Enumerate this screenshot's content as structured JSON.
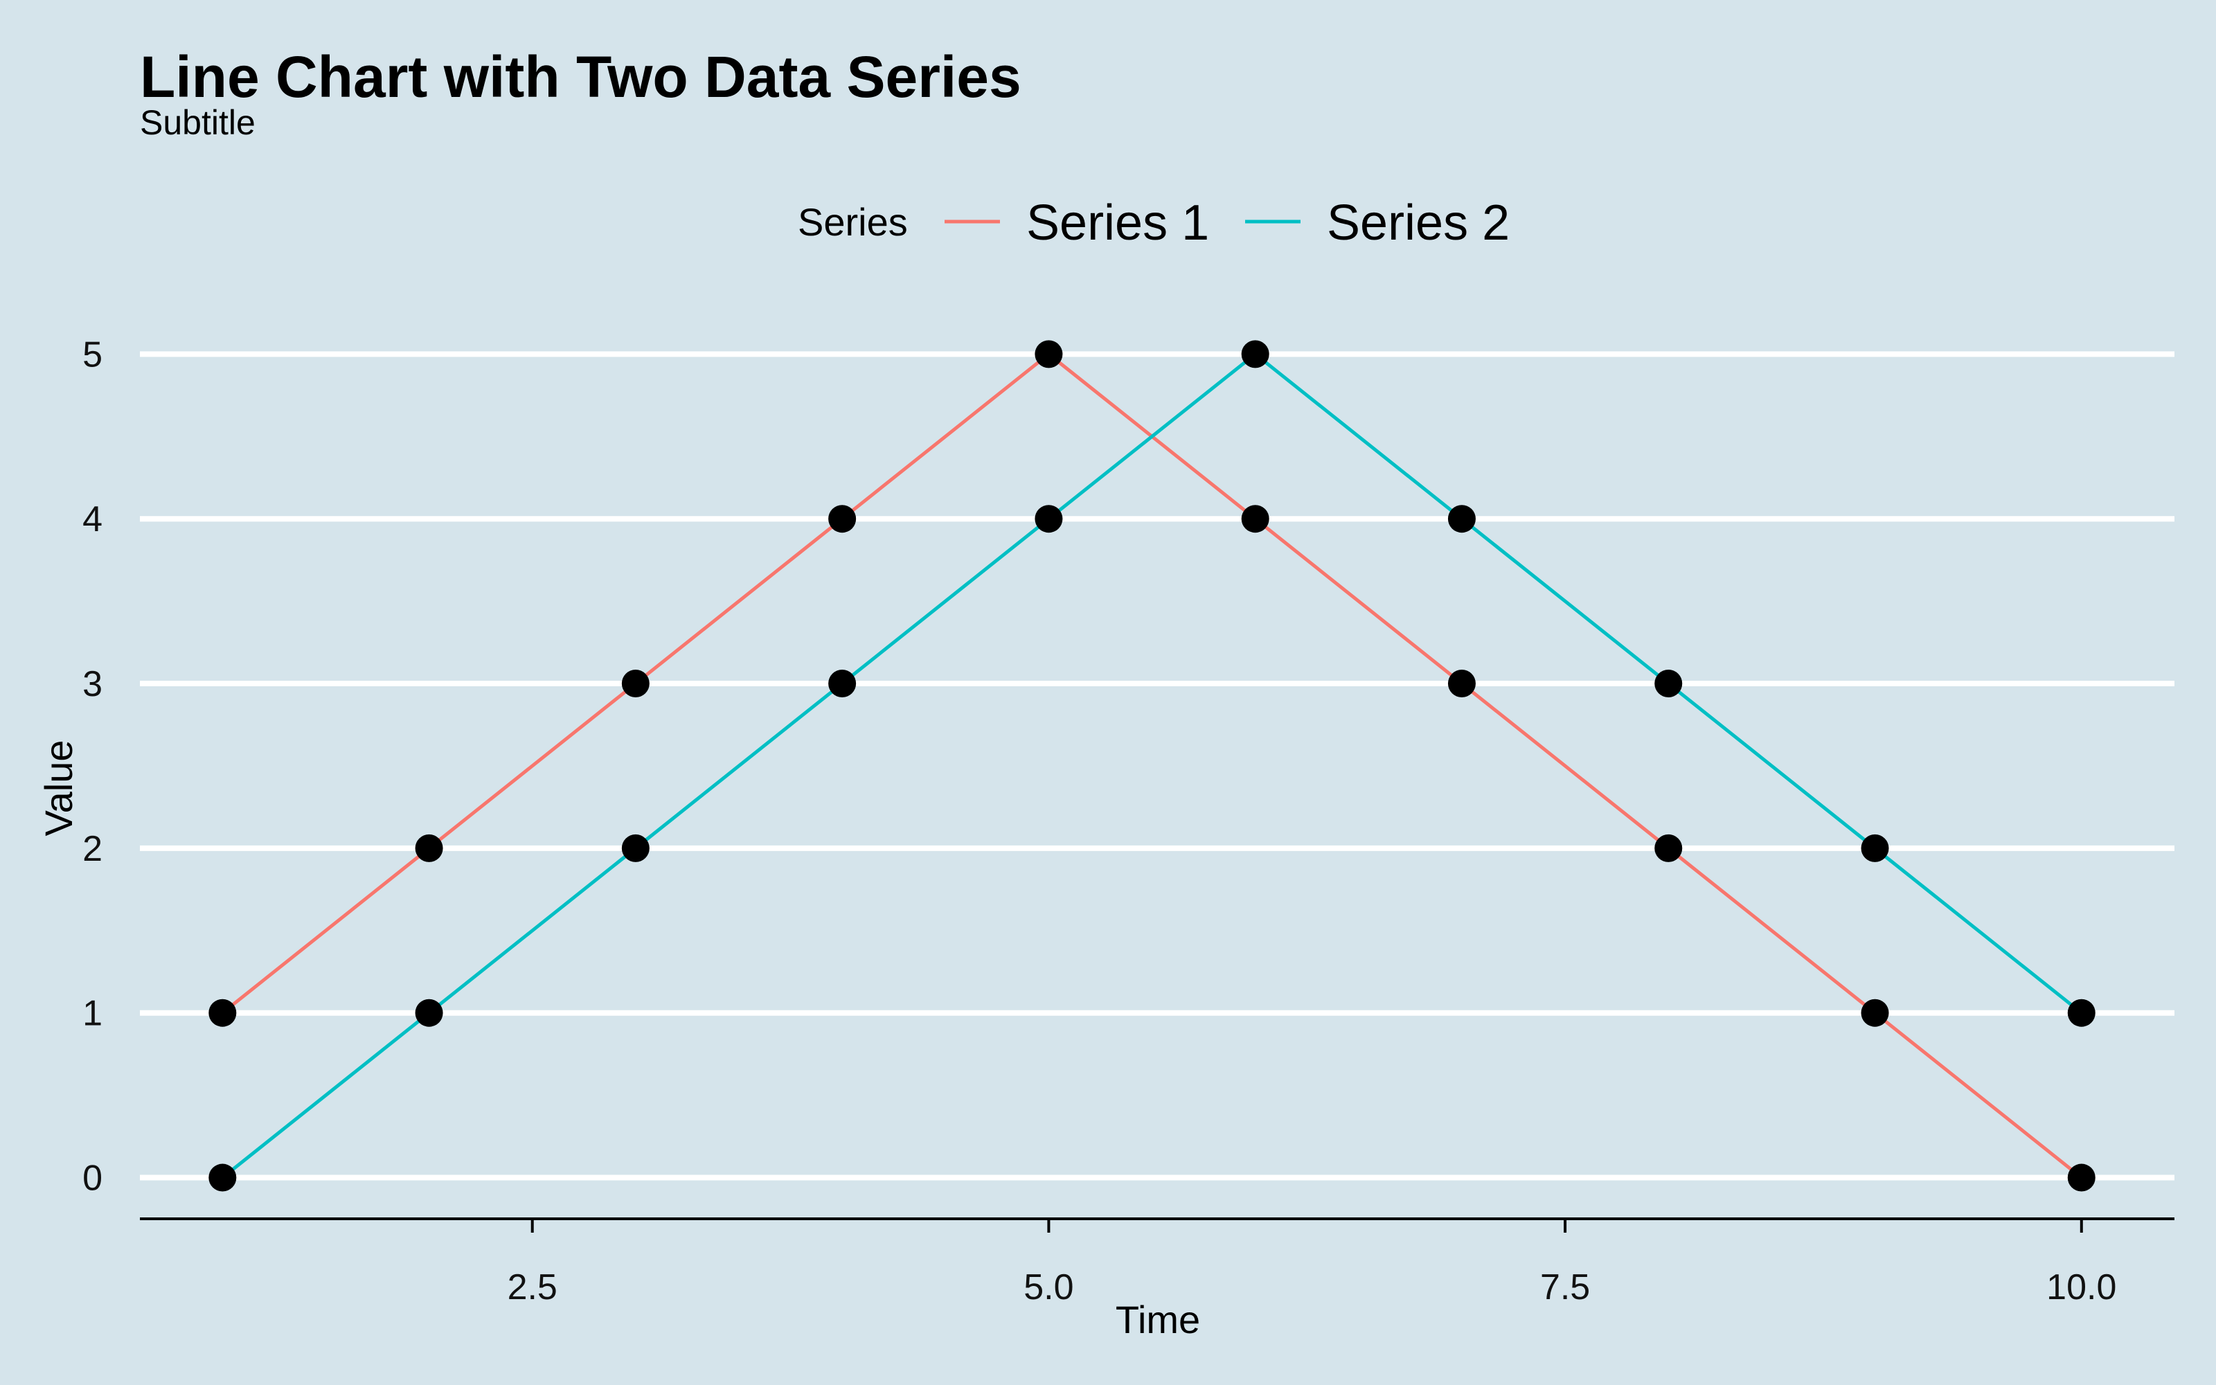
{
  "chart_data": {
    "type": "line",
    "title": "Line Chart with Two Data Series",
    "subtitle": "Subtitle",
    "xlabel": "Time",
    "ylabel": "Value",
    "legend_title": "Series",
    "legend_position": "top",
    "x": [
      1,
      2,
      3,
      4,
      5,
      6,
      7,
      8,
      9,
      10
    ],
    "xlim": [
      0.6,
      10.45
    ],
    "ylim": [
      -0.25,
      5.3
    ],
    "x_ticks": [
      2.5,
      5.0,
      7.5,
      10.0
    ],
    "x_tick_labels": [
      "2.5",
      "5.0",
      "7.5",
      "10.0"
    ],
    "y_ticks": [
      0,
      1,
      2,
      3,
      4,
      5
    ],
    "y_tick_labels": [
      "0",
      "1",
      "2",
      "3",
      "4",
      "5"
    ],
    "grid": "horizontal-major",
    "series": [
      {
        "name": "Series 1",
        "color": "#f8766d",
        "values": [
          1,
          2,
          3,
          4,
          5,
          4,
          3,
          2,
          1,
          0
        ]
      },
      {
        "name": "Series 2",
        "color": "#00bfc4",
        "values": [
          0,
          1,
          2,
          3,
          4,
          5,
          4,
          3,
          2,
          1
        ]
      }
    ],
    "point_color": "#000000",
    "background_color": "#d5e4eb"
  }
}
